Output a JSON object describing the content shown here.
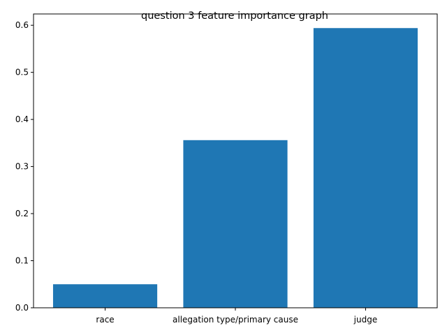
{
  "chart_data": {
    "type": "bar",
    "title": "question 3 feature importance graph",
    "xlabel": "",
    "ylabel": "",
    "categories": [
      "race",
      "allegation type/primary cause",
      "judge"
    ],
    "values": [
      0.05,
      0.356,
      0.594
    ],
    "ylim": [
      0,
      0.624
    ],
    "yticks": [
      0.0,
      0.1,
      0.2,
      0.3,
      0.4,
      0.5,
      0.6
    ],
    "ytick_labels": [
      "0.0",
      "0.1",
      "0.2",
      "0.3",
      "0.4",
      "0.5",
      "0.6"
    ],
    "bar_color": "#1f77b4",
    "grid": false,
    "legend": "none"
  }
}
